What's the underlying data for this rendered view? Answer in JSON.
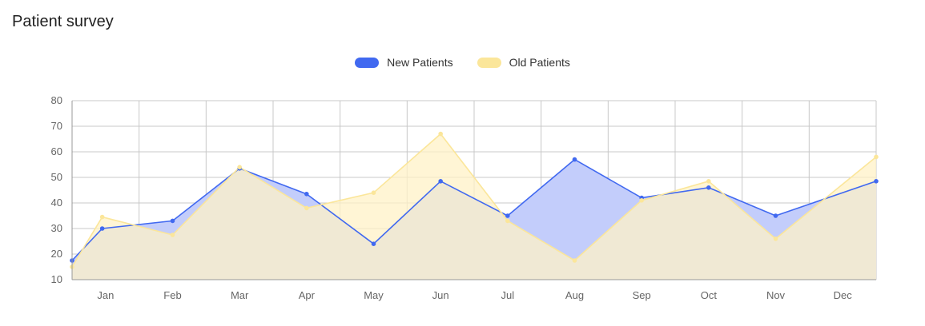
{
  "title": "Patient survey",
  "chart_data": {
    "type": "area",
    "title": "Patient survey",
    "xlabel": "",
    "ylabel": "",
    "ylim": [
      10,
      80
    ],
    "yticks": [
      10,
      20,
      30,
      40,
      50,
      60,
      70,
      80
    ],
    "categories": [
      "Jan",
      "Feb",
      "Mar",
      "Apr",
      "May",
      "Jun",
      "Jul",
      "Aug",
      "Sep",
      "Oct",
      "Nov",
      "Dec"
    ],
    "grid": true,
    "legend_position": "top-center",
    "series": [
      {
        "name": "New Patients",
        "color": "#4169f0",
        "fill": "#c3cdfb",
        "points": [
          [
            0.0,
            17.5
          ],
          [
            0.45,
            30
          ],
          [
            1.5,
            33
          ],
          [
            2.5,
            53.5
          ],
          [
            3.5,
            43.5
          ],
          [
            4.5,
            24
          ],
          [
            5.5,
            48.5
          ],
          [
            6.5,
            35
          ],
          [
            7.5,
            57
          ],
          [
            8.5,
            42
          ],
          [
            9.5,
            46
          ],
          [
            10.5,
            35
          ],
          [
            12.0,
            48.5
          ]
        ]
      },
      {
        "name": "Old Patients",
        "color": "#fbe69a",
        "fill": "#fff2c7",
        "points": [
          [
            0.0,
            15
          ],
          [
            0.45,
            34.5
          ],
          [
            1.5,
            27.5
          ],
          [
            2.5,
            54
          ],
          [
            3.5,
            38
          ],
          [
            4.5,
            44
          ],
          [
            5.5,
            67
          ],
          [
            6.5,
            33
          ],
          [
            7.5,
            17.5
          ],
          [
            8.5,
            41
          ],
          [
            9.5,
            48.5
          ],
          [
            10.5,
            26
          ],
          [
            12.0,
            58
          ]
        ]
      }
    ]
  }
}
